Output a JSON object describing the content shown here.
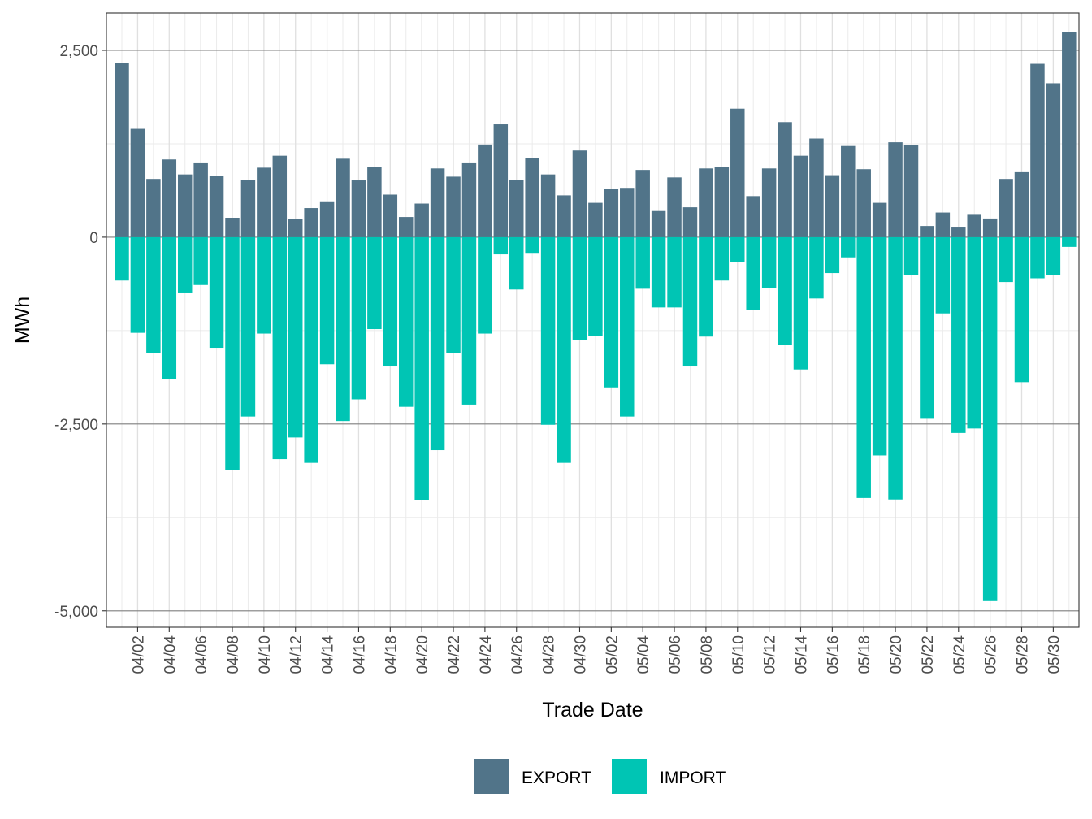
{
  "chart_data": {
    "type": "bar",
    "stacked": "diverging",
    "xlabel": "Trade Date",
    "ylabel": "MWh",
    "ylim": [
      -5220,
      3000
    ],
    "yticks": [
      2500,
      0,
      -2500,
      -5000
    ],
    "ytick_labels": [
      "2,500",
      "0",
      "-2,500",
      "-5,000"
    ],
    "categories": [
      "04/01",
      "04/02",
      "04/03",
      "04/04",
      "04/05",
      "04/06",
      "04/07",
      "04/08",
      "04/09",
      "04/10",
      "04/11",
      "04/12",
      "04/13",
      "04/14",
      "04/15",
      "04/16",
      "04/17",
      "04/18",
      "04/19",
      "04/20",
      "04/21",
      "04/22",
      "04/23",
      "04/24",
      "04/25",
      "04/26",
      "04/27",
      "04/28",
      "04/29",
      "04/30",
      "05/01",
      "05/02",
      "05/03",
      "05/04",
      "05/05",
      "05/06",
      "05/07",
      "05/08",
      "05/09",
      "05/10",
      "05/11",
      "05/12",
      "05/13",
      "05/14",
      "05/15",
      "05/16",
      "05/17",
      "05/18",
      "05/19",
      "05/20",
      "05/21",
      "05/22",
      "05/23",
      "05/24",
      "05/25",
      "05/26",
      "05/27",
      "05/28",
      "05/29",
      "05/30",
      "05/31"
    ],
    "xtick_labels": [
      "04/02",
      "04/04",
      "04/06",
      "04/08",
      "04/10",
      "04/12",
      "04/14",
      "04/16",
      "04/18",
      "04/20",
      "04/22",
      "04/24",
      "04/26",
      "04/28",
      "04/30",
      "05/02",
      "05/04",
      "05/06",
      "05/08",
      "05/10",
      "05/12",
      "05/14",
      "05/16",
      "05/18",
      "05/20",
      "05/22",
      "05/24",
      "05/26",
      "05/28",
      "05/30"
    ],
    "series": [
      {
        "name": "EXPORT",
        "color": "#517489",
        "values": [
          2330,
          1450,
          780,
          1040,
          840,
          1000,
          820,
          260,
          770,
          930,
          1090,
          240,
          390,
          480,
          1050,
          760,
          940,
          570,
          270,
          450,
          920,
          810,
          1000,
          1240,
          1510,
          770,
          1060,
          840,
          560,
          1160,
          460,
          650,
          660,
          900,
          350,
          800,
          400,
          920,
          940,
          1720,
          550,
          920,
          1540,
          1090,
          1320,
          830,
          1220,
          910,
          460,
          1270,
          1230,
          150,
          330,
          140,
          310,
          250,
          780,
          870,
          2320,
          2060,
          2740
        ]
      },
      {
        "name": "IMPORT",
        "color": "#00c5b4",
        "values": [
          -580,
          -1280,
          -1550,
          -1900,
          -740,
          -640,
          -1480,
          -3120,
          -2400,
          -1290,
          -2970,
          -2680,
          -3020,
          -1700,
          -2460,
          -2170,
          -1230,
          -1730,
          -2270,
          -3520,
          -2850,
          -1550,
          -2240,
          -1290,
          -230,
          -700,
          -210,
          -2510,
          -3020,
          -1380,
          -1320,
          -2010,
          -2400,
          -690,
          -940,
          -940,
          -1730,
          -1330,
          -580,
          -330,
          -970,
          -680,
          -1440,
          -1770,
          -820,
          -480,
          -270,
          -3490,
          -2920,
          -3510,
          -510,
          -2430,
          -1020,
          -2620,
          -2560,
          -4870,
          -600,
          -1940,
          -550,
          -510,
          -130
        ]
      }
    ],
    "legend": {
      "position": "bottom",
      "entries": [
        "EXPORT",
        "IMPORT"
      ]
    },
    "grid": true
  }
}
